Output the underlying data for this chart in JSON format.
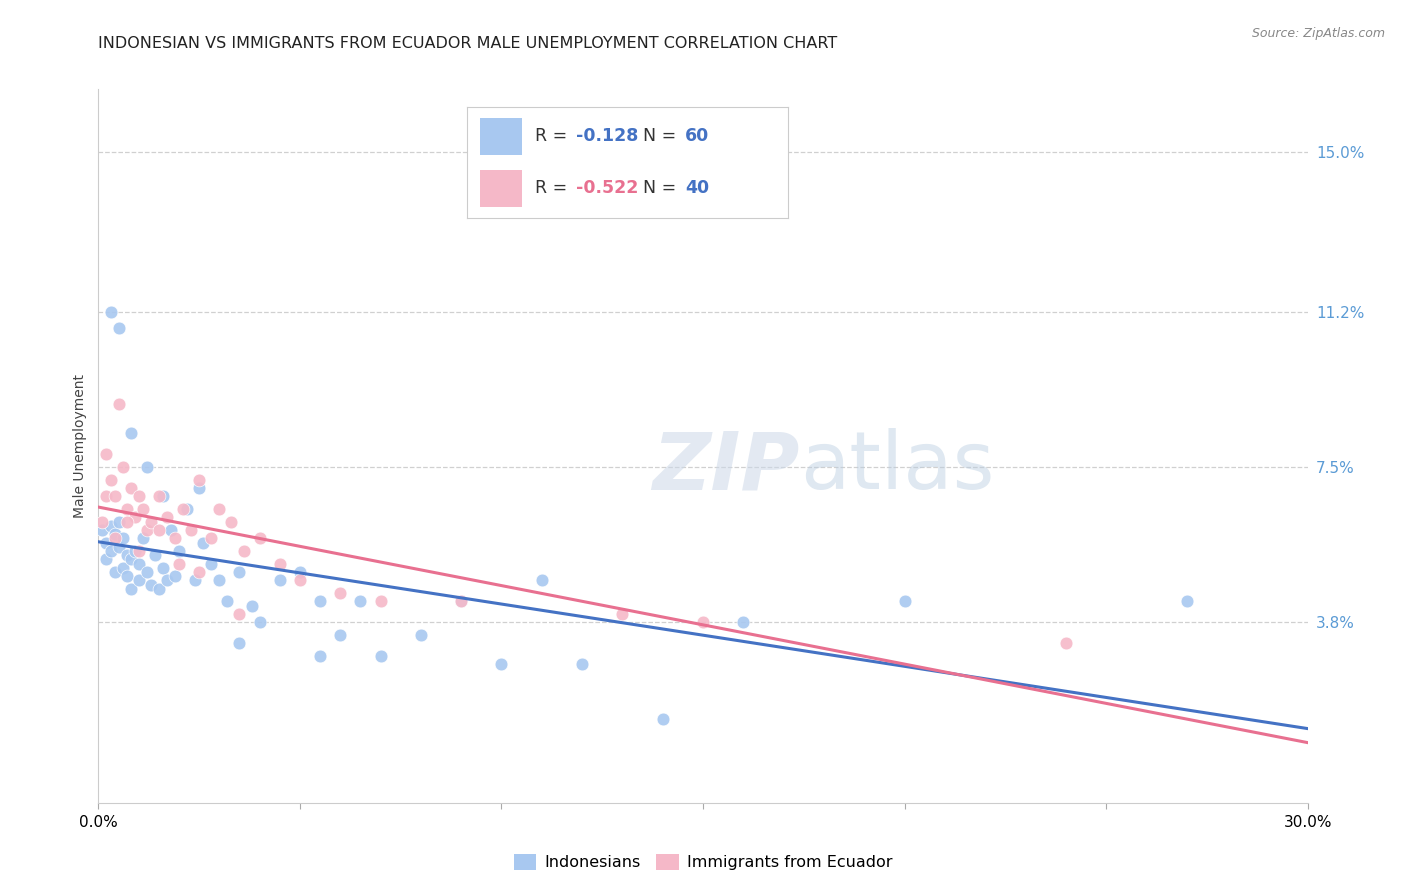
{
  "title": "INDONESIAN VS IMMIGRANTS FROM ECUADOR MALE UNEMPLOYMENT CORRELATION CHART",
  "source": "Source: ZipAtlas.com",
  "ylabel": "Male Unemployment",
  "xlim": [
    0.0,
    0.3
  ],
  "ylim": [
    -0.005,
    0.165
  ],
  "yticks": [
    0.038,
    0.075,
    0.112,
    0.15
  ],
  "ytick_labels": [
    "3.8%",
    "7.5%",
    "11.2%",
    "15.0%"
  ],
  "xticks": [
    0.0,
    0.05,
    0.1,
    0.15,
    0.2,
    0.25,
    0.3
  ],
  "xtick_labels": [
    "0.0%",
    "",
    "",
    "",
    "",
    "",
    "30.0%"
  ],
  "grid_color": "#d0d0d0",
  "background_color": "#ffffff",
  "blue_color": "#A8C8F0",
  "pink_color": "#F5B8C8",
  "blue_line_color": "#4472C4",
  "pink_line_color": "#E87090",
  "blue_r": "-0.128",
  "blue_n": "60",
  "pink_r": "-0.522",
  "pink_n": "40",
  "legend_label_blue": "Indonesians",
  "legend_label_pink": "Immigrants from Ecuador",
  "right_tick_color": "#5B9BD5",
  "title_fontsize": 11.5,
  "label_fontsize": 10,
  "tick_fontsize": 11,
  "indonesians_x": [
    0.001,
    0.002,
    0.002,
    0.003,
    0.003,
    0.004,
    0.004,
    0.005,
    0.005,
    0.006,
    0.006,
    0.007,
    0.007,
    0.008,
    0.008,
    0.009,
    0.01,
    0.01,
    0.011,
    0.012,
    0.013,
    0.014,
    0.015,
    0.016,
    0.017,
    0.018,
    0.019,
    0.02,
    0.022,
    0.024,
    0.026,
    0.028,
    0.03,
    0.032,
    0.035,
    0.038,
    0.04,
    0.045,
    0.05,
    0.055,
    0.06,
    0.065,
    0.07,
    0.08,
    0.09,
    0.1,
    0.11,
    0.12,
    0.14,
    0.16,
    0.003,
    0.005,
    0.008,
    0.012,
    0.016,
    0.025,
    0.035,
    0.055,
    0.2,
    0.27
  ],
  "indonesians_y": [
    0.06,
    0.057,
    0.053,
    0.061,
    0.055,
    0.059,
    0.05,
    0.062,
    0.056,
    0.058,
    0.051,
    0.054,
    0.049,
    0.053,
    0.046,
    0.055,
    0.052,
    0.048,
    0.058,
    0.05,
    0.047,
    0.054,
    0.046,
    0.051,
    0.048,
    0.06,
    0.049,
    0.055,
    0.065,
    0.048,
    0.057,
    0.052,
    0.048,
    0.043,
    0.05,
    0.042,
    0.038,
    0.048,
    0.05,
    0.043,
    0.035,
    0.043,
    0.03,
    0.035,
    0.043,
    0.028,
    0.048,
    0.028,
    0.015,
    0.038,
    0.112,
    0.108,
    0.083,
    0.075,
    0.068,
    0.07,
    0.033,
    0.03,
    0.043,
    0.043
  ],
  "ecuador_x": [
    0.001,
    0.002,
    0.003,
    0.004,
    0.005,
    0.006,
    0.007,
    0.008,
    0.009,
    0.01,
    0.011,
    0.012,
    0.013,
    0.015,
    0.017,
    0.019,
    0.021,
    0.023,
    0.025,
    0.028,
    0.03,
    0.033,
    0.036,
    0.04,
    0.045,
    0.05,
    0.06,
    0.07,
    0.09,
    0.13,
    0.002,
    0.004,
    0.007,
    0.01,
    0.015,
    0.02,
    0.025,
    0.035,
    0.24,
    0.15
  ],
  "ecuador_y": [
    0.062,
    0.068,
    0.072,
    0.058,
    0.09,
    0.075,
    0.065,
    0.07,
    0.063,
    0.068,
    0.065,
    0.06,
    0.062,
    0.068,
    0.063,
    0.058,
    0.065,
    0.06,
    0.072,
    0.058,
    0.065,
    0.062,
    0.055,
    0.058,
    0.052,
    0.048,
    0.045,
    0.043,
    0.043,
    0.04,
    0.078,
    0.068,
    0.062,
    0.055,
    0.06,
    0.052,
    0.05,
    0.04,
    0.033,
    0.038
  ]
}
